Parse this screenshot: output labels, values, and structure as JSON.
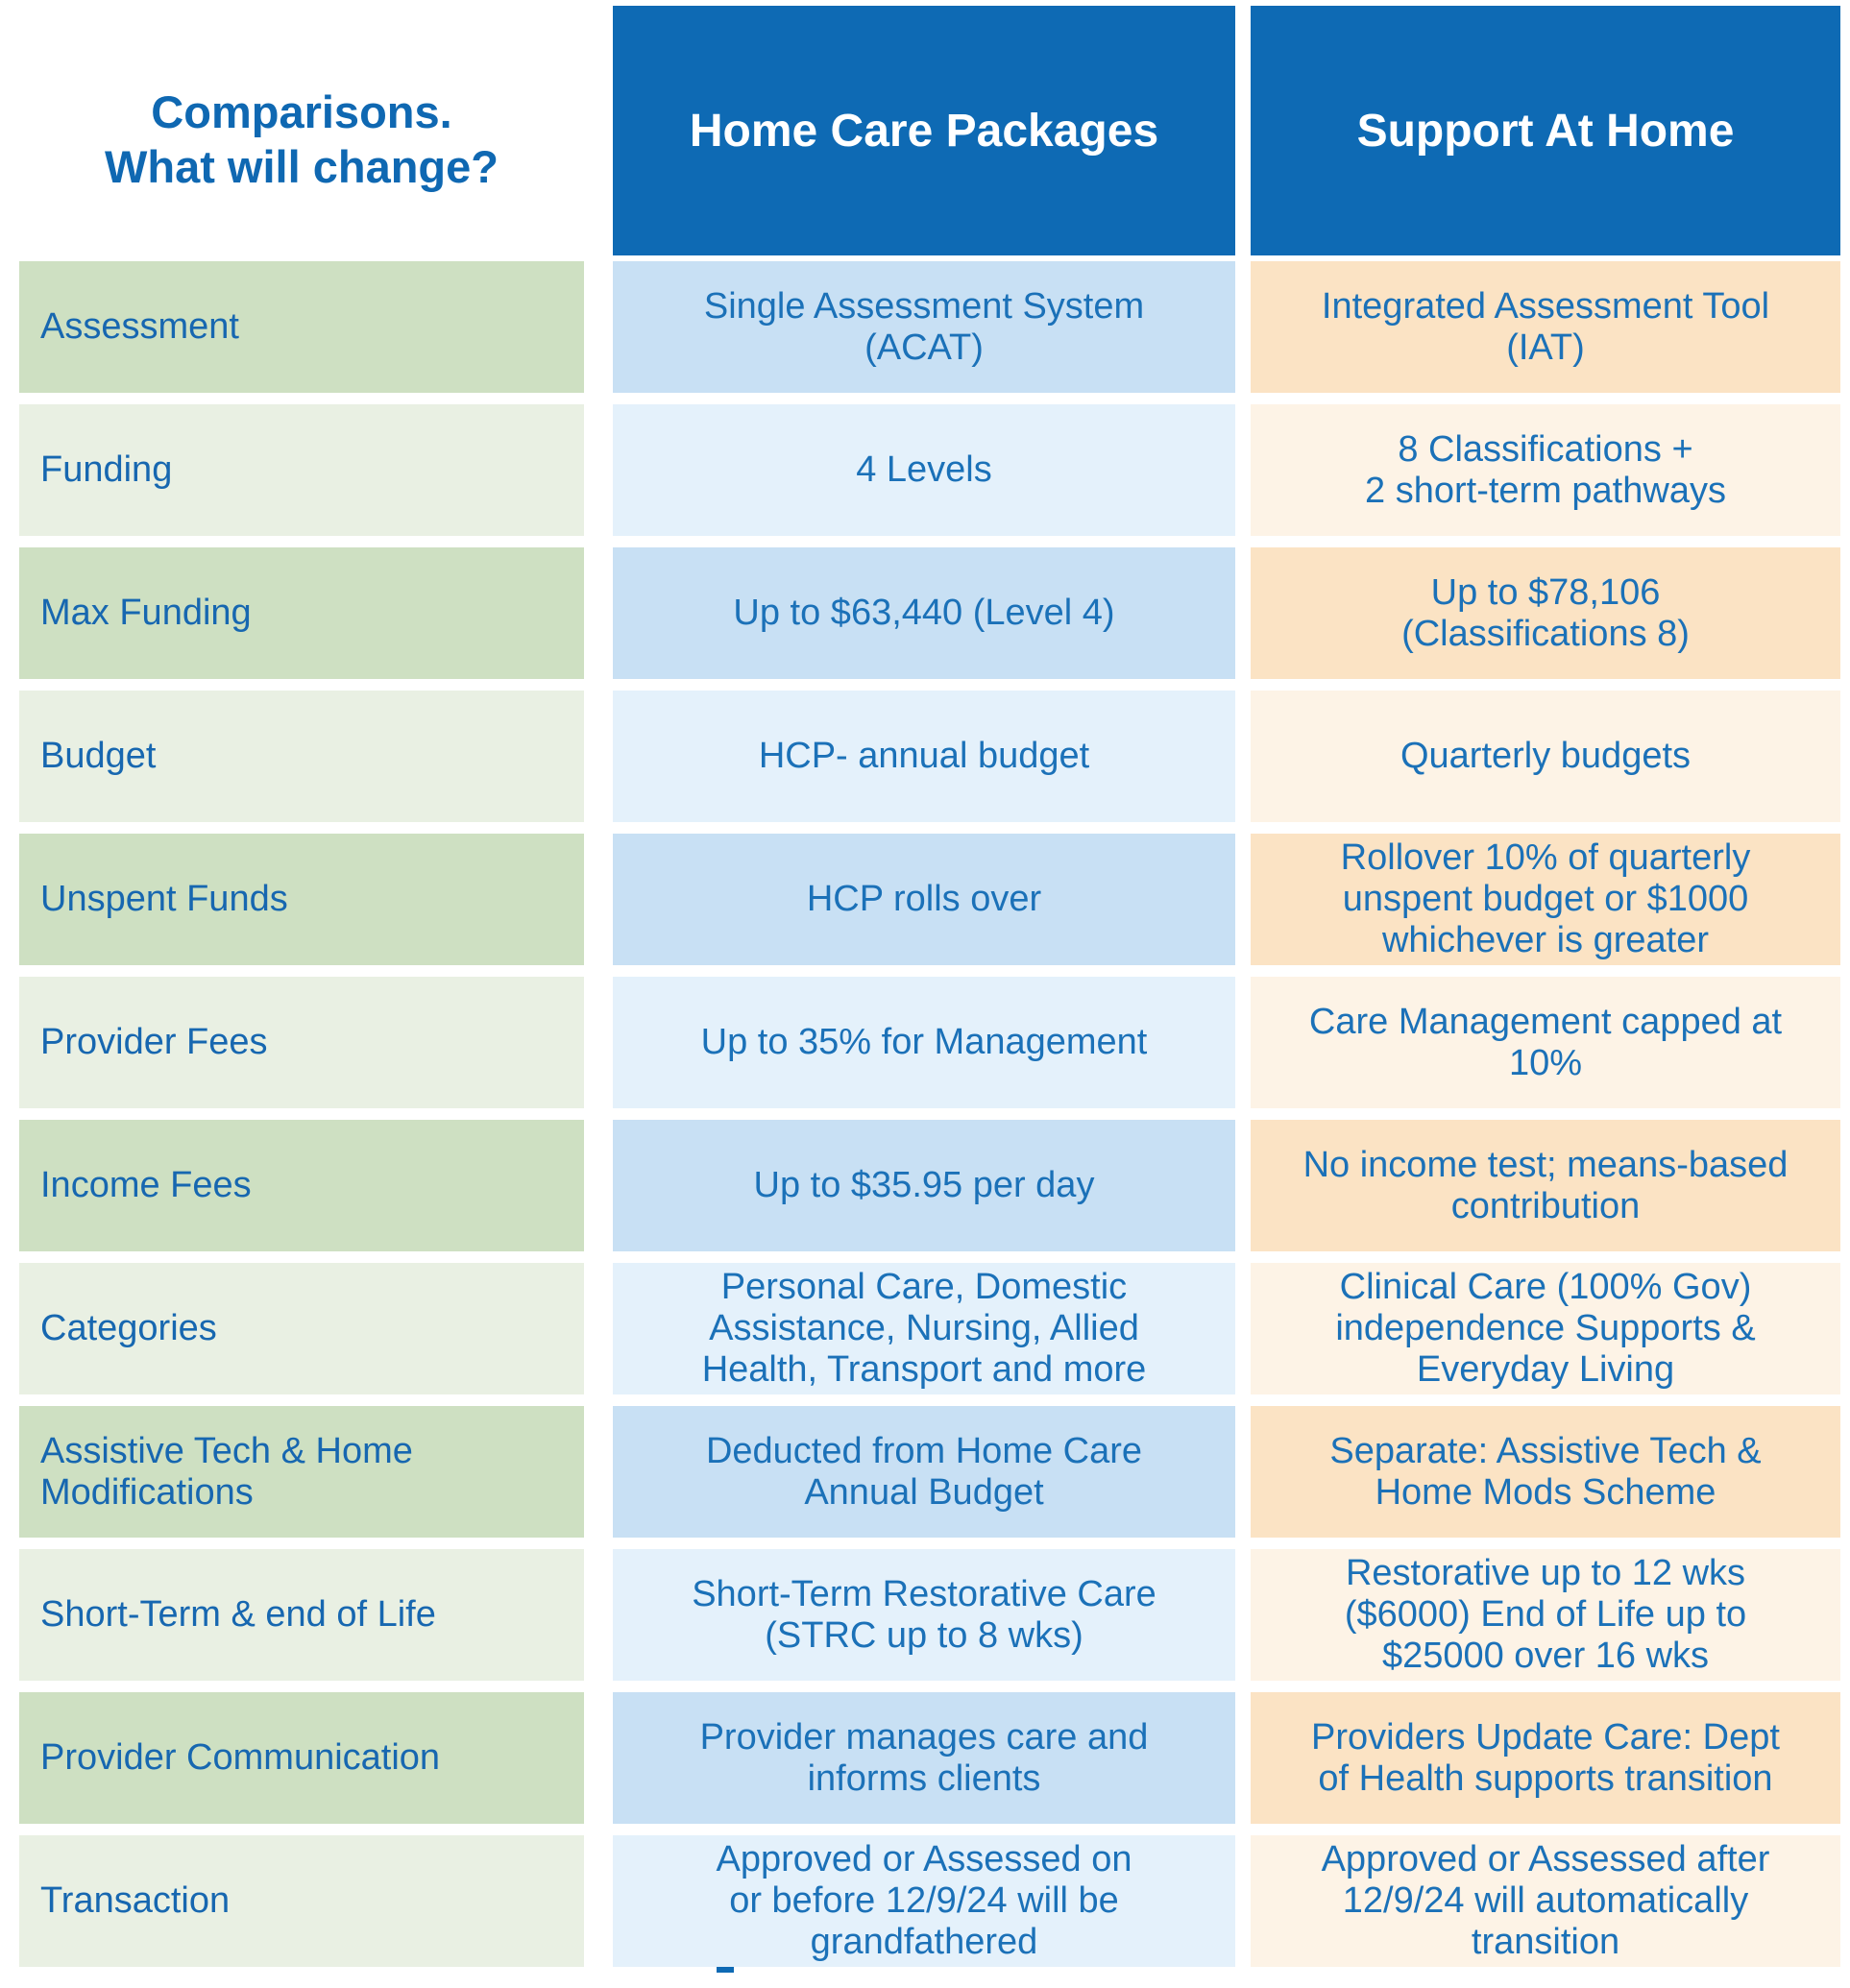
{
  "header": {
    "title": "Comparisons.\nWhat will change?",
    "col_hcp": "Home Care Packages",
    "col_sah": "Support At Home"
  },
  "colors": {
    "header_bg": "#0E6AB4",
    "title_text": "#0F68B2",
    "cell_text": "#1B71B8",
    "green_dark": "#CEE0C2",
    "green_light": "#E9F0E3",
    "blue_dark": "#C8E0F4",
    "blue_light": "#E4F1FB",
    "peach_dark": "#FBE3C4",
    "peach_light": "#FDF3E6"
  },
  "rows": [
    {
      "label": "Assessment",
      "hcp": "Single Assessment System\n(ACAT)",
      "sah": "Integrated Assessment Tool\n(IAT)"
    },
    {
      "label": "Funding",
      "hcp": "4 Levels",
      "sah": "8 Classifications +\n2 short-term pathways"
    },
    {
      "label": "Max Funding",
      "hcp": "Up to $63,440 (Level 4)",
      "sah": "Up to $78,106\n(Classifications 8)"
    },
    {
      "label": "Budget",
      "hcp": "HCP- annual budget",
      "sah": "Quarterly budgets"
    },
    {
      "label": "Unspent Funds",
      "hcp": "HCP rolls over",
      "sah": "Rollover 10% of quarterly\nunspent budget or $1000\nwhichever is greater"
    },
    {
      "label": "Provider Fees",
      "hcp": "Up to 35% for Management",
      "sah": "Care Management capped at\n10%"
    },
    {
      "label": "Income Fees",
      "hcp": "Up to $35.95 per day",
      "sah": "No income test; means-based\ncontribution"
    },
    {
      "label": "Categories",
      "hcp": "Personal Care, Domestic\nAssistance, Nursing, Allied\nHealth, Transport and more",
      "sah": "Clinical Care (100% Gov)\nindependence Supports &\nEveryday Living"
    },
    {
      "label": "Assistive Tech & Home Modifications",
      "hcp": "Deducted from Home Care\nAnnual Budget",
      "sah": "Separate: Assistive Tech &\nHome Mods Scheme"
    },
    {
      "label": "Short-Term & end of Life",
      "hcp": "Short-Term Restorative Care\n(STRC up to 8 wks)",
      "sah": "Restorative up to 12 wks\n($6000) End of Life up to\n$25000 over 16 wks"
    },
    {
      "label": "Provider Communication",
      "hcp": "Provider manages care and\ninforms clients",
      "sah": "Providers Update Care: Dept\nof Health supports transition"
    },
    {
      "label": "Transaction",
      "hcp": "Approved or Assessed on\nor before 12/9/24 will be\ngrandfathered",
      "sah": "Approved or Assessed after\n12/9/24 will automatically\ntransition"
    }
  ]
}
